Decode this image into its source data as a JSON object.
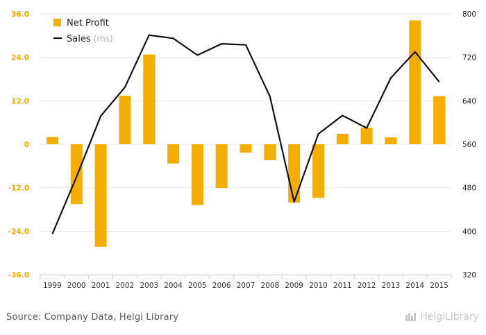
{
  "colors": {
    "bar": "#f5ad00",
    "line": "#111111",
    "left_axis_text": "#f5a800",
    "right_axis_text": "#222222",
    "grid": "#e7e7e7"
  },
  "legend": {
    "bar_label": "Net Profit",
    "line_label": "Sales",
    "line_suffix": "(rhs)"
  },
  "left_ticks": [
    "36.0",
    "24.0",
    "12.0",
    "0",
    "-12.0",
    "-24.0",
    "-36.0"
  ],
  "right_ticks": [
    "800",
    "720",
    "640",
    "560",
    "480",
    "400",
    "320"
  ],
  "footer": {
    "source": "Source: Company Data, Helgi Library",
    "brand": "HelgiLibrary",
    "brand_icon": "helgi-logo-icon"
  },
  "chart_data": {
    "type": "bar",
    "categories": [
      "1999",
      "2000",
      "2001",
      "2002",
      "2003",
      "2004",
      "2005",
      "2006",
      "2007",
      "2008",
      "2009",
      "2010",
      "2011",
      "2012",
      "2013",
      "2014",
      "2015"
    ],
    "series": [
      {
        "name": "Net Profit",
        "type": "bar",
        "axis": "left",
        "values": [
          2.0,
          -16.5,
          -28.3,
          13.4,
          24.8,
          -5.3,
          -16.8,
          -12.1,
          -2.3,
          -4.4,
          -16.1,
          -14.8,
          2.9,
          4.6,
          1.9,
          34.2,
          13.3
        ]
      },
      {
        "name": "Sales",
        "type": "line",
        "axis": "right",
        "values": [
          395,
          500,
          612,
          665,
          761,
          755,
          724,
          745,
          743,
          648,
          454,
          579,
          613,
          590,
          682,
          730,
          675
        ]
      }
    ],
    "ylim_left": [
      -36,
      36
    ],
    "ylim_right": [
      320,
      800
    ],
    "grid": true,
    "legend_position": "top-left"
  }
}
